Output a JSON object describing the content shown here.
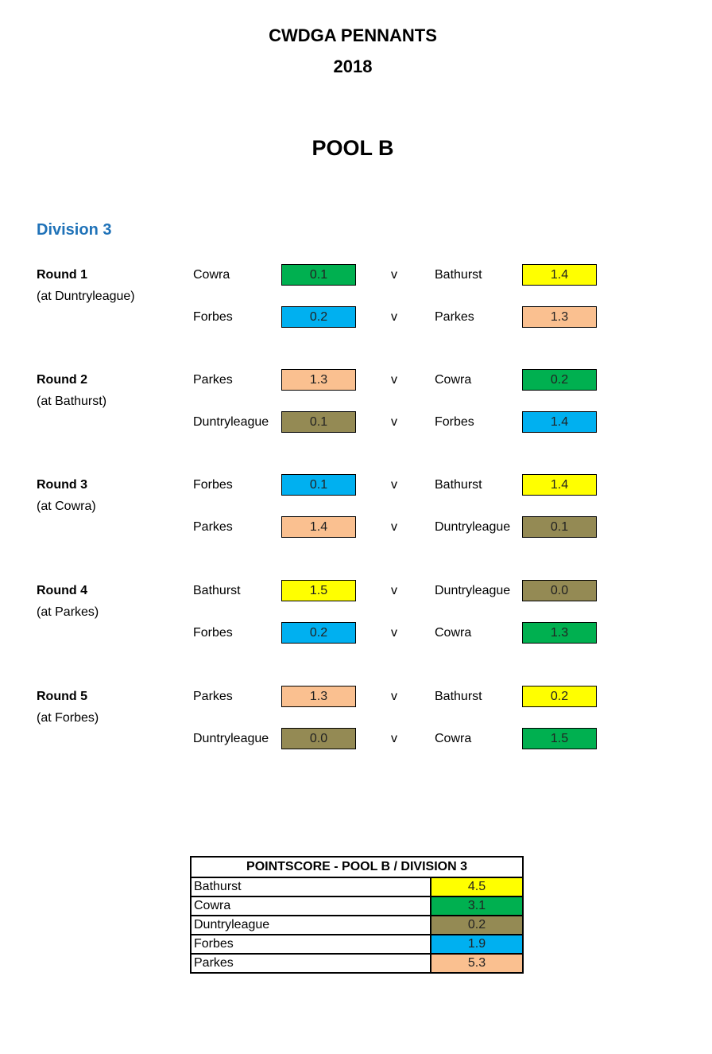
{
  "title": "CWDGA PENNANTS",
  "year": "2018",
  "pool": "POOL B",
  "division": "Division 3",
  "vs_label": "v",
  "colors": {
    "Cowra": "#00b050",
    "Bathurst": "#ffff00",
    "Forbes": "#00b0f0",
    "Parkes": "#fac090",
    "Duntryleague": "#948a54"
  },
  "rounds": [
    {
      "label": "Round 1",
      "venue": "(at Duntryleague)",
      "matches": [
        {
          "home": "Cowra",
          "home_score": "0.1",
          "away": "Bathurst",
          "away_score": "1.4"
        },
        {
          "home": "Forbes",
          "home_score": "0.2",
          "away": "Parkes",
          "away_score": "1.3"
        }
      ]
    },
    {
      "label": "Round 2",
      "venue": "(at Bathurst)",
      "matches": [
        {
          "home": "Parkes",
          "home_score": "1.3",
          "away": "Cowra",
          "away_score": "0.2"
        },
        {
          "home": "Duntryleague",
          "home_score": "0.1",
          "away": "Forbes",
          "away_score": "1.4"
        }
      ]
    },
    {
      "label": "Round 3",
      "venue": "(at Cowra)",
      "matches": [
        {
          "home": "Forbes",
          "home_score": "0.1",
          "away": "Bathurst",
          "away_score": "1.4"
        },
        {
          "home": "Parkes",
          "home_score": "1.4",
          "away": "Duntryleague",
          "away_score": "0.1"
        }
      ]
    },
    {
      "label": "Round 4",
      "venue": "(at Parkes)",
      "matches": [
        {
          "home": "Bathurst",
          "home_score": "1.5",
          "away": "Duntryleague",
          "away_score": "0.0"
        },
        {
          "home": "Forbes",
          "home_score": "0.2",
          "away": "Cowra",
          "away_score": "1.3"
        }
      ]
    },
    {
      "label": "Round 5",
      "venue": "(at Forbes)",
      "matches": [
        {
          "home": "Parkes",
          "home_score": "1.3",
          "away": "Bathurst",
          "away_score": "0.2"
        },
        {
          "home": "Duntryleague",
          "home_score": "0.0",
          "away": "Cowra",
          "away_score": "1.5"
        }
      ]
    }
  ],
  "pointscore": {
    "title": "POINTSCORE - POOL B / DIVISION 3",
    "rows": [
      {
        "team": "Bathurst",
        "points": "4.5"
      },
      {
        "team": "Cowra",
        "points": "3.1"
      },
      {
        "team": "Duntryleague",
        "points": "0.2"
      },
      {
        "team": "Forbes",
        "points": "1.9"
      },
      {
        "team": "Parkes",
        "points": "5.3"
      }
    ]
  }
}
